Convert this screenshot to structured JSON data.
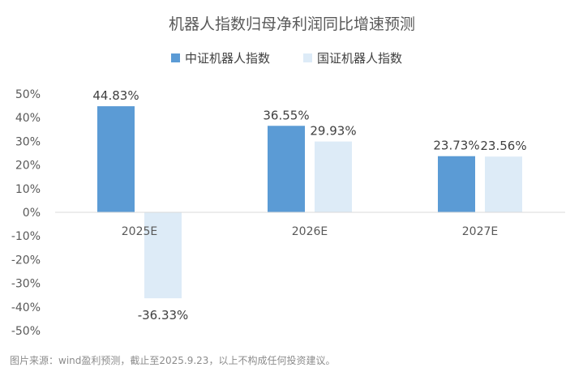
{
  "chart_data": {
    "type": "bar",
    "title": "机器人指数归母净利润同比增速预测",
    "categories": [
      "2025E",
      "2026E",
      "2027E"
    ],
    "series": [
      {
        "name": "中证机器人指数",
        "values": [
          44.83,
          36.55,
          23.73
        ],
        "labels": [
          "44.83%",
          "36.55%",
          "23.73%"
        ],
        "color": "#5b9bd5"
      },
      {
        "name": "国证机器人指数",
        "values": [
          -36.33,
          29.93,
          23.56
        ],
        "labels": [
          "-36.33%",
          "29.93%",
          "23.56%"
        ],
        "color": "#ddebf7"
      }
    ],
    "ylim": [
      -50,
      50
    ],
    "yticks": [
      50,
      40,
      30,
      20,
      10,
      0,
      -10,
      -20,
      -30,
      -40,
      -50
    ],
    "ytick_labels": [
      "50%",
      "40%",
      "30%",
      "20%",
      "10%",
      "0%",
      "-10%",
      "-20%",
      "-30%",
      "-40%",
      "-50%"
    ],
    "legend_position": "top-center",
    "grid": false,
    "xlabel": "",
    "ylabel": ""
  },
  "source_note": "图片来源：wind盈利预测，截止至2025.9.23，以上不构成任何投资建议。"
}
